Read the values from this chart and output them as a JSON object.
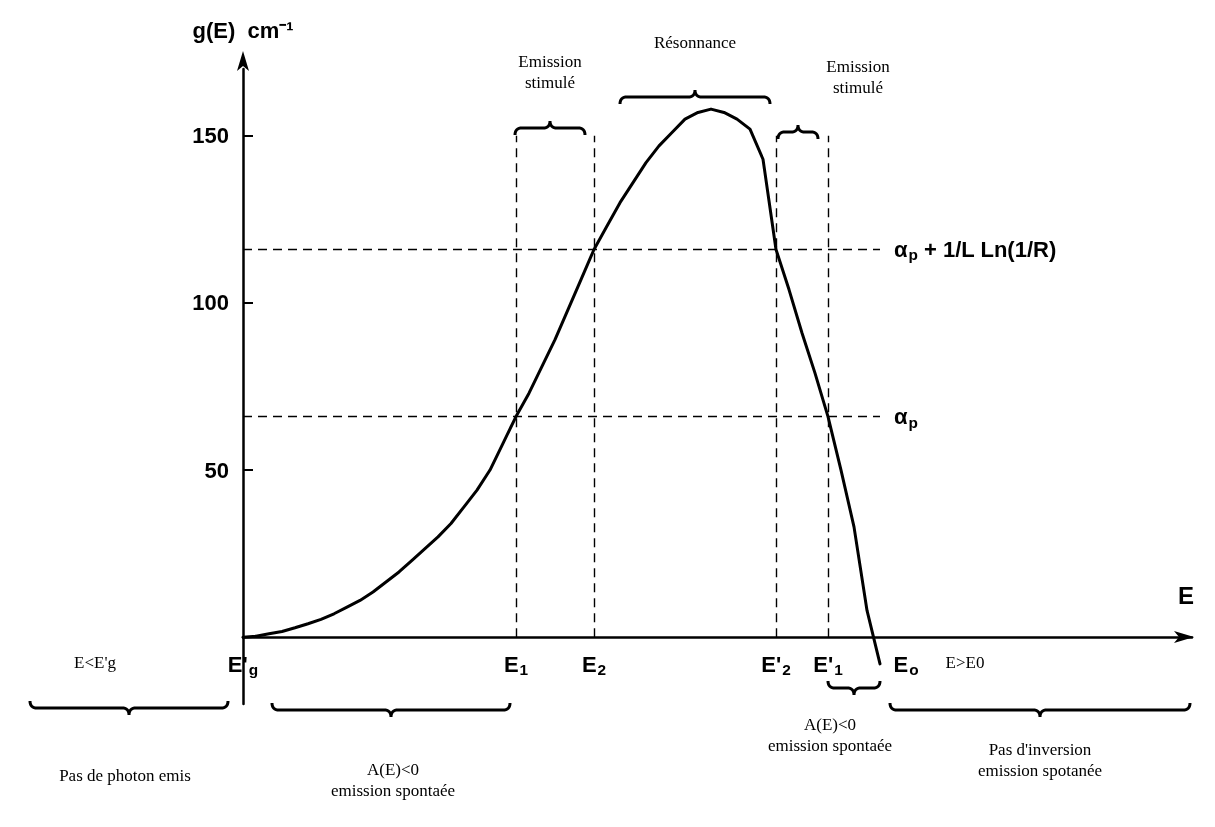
{
  "chart_data": {
    "type": "line",
    "xlabel": "E",
    "ylabel": "g(E)  cm⁻¹",
    "categories": [
      "E'$_{g}$",
      null,
      null,
      null,
      null,
      null,
      null,
      null,
      null,
      null,
      null,
      null,
      null,
      null,
      null,
      null,
      null,
      null,
      null,
      null,
      null,
      "E$_{1}$",
      null,
      null,
      null,
      null,
      null,
      "E$_{2}$",
      null,
      null,
      null,
      null,
      null,
      null,
      null,
      null,
      null,
      null,
      null,
      null,
      null,
      "E'$_{2}$",
      null,
      null,
      null,
      "E'$_{1}$",
      null,
      null,
      null,
      null,
      null,
      "E$_{o}$",
      null,
      null,
      null,
      null,
      null,
      null,
      null,
      null,
      null,
      null,
      null,
      null,
      null,
      null,
      null,
      null,
      null,
      null,
      null,
      null,
      null,
      null
    ],
    "values": [
      0,
      0.3,
      1,
      1.7,
      2.8,
      4,
      5.3,
      7,
      9,
      11,
      13.5,
      16.5,
      19.5,
      23,
      26.5,
      30,
      34,
      39,
      44,
      50,
      58,
      66,
      73,
      81,
      89,
      98,
      107,
      116,
      123,
      130,
      136,
      142,
      147,
      151,
      155,
      157,
      158,
      157,
      155,
      152,
      143,
      116,
      104,
      91,
      79,
      66,
      50,
      33,
      8,
      -8,
      null,
      null,
      null,
      null,
      null,
      null,
      null,
      null,
      null,
      null,
      null,
      null,
      null,
      null,
      null,
      null,
      null,
      null,
      null,
      null,
      null,
      null,
      null,
      null
    ],
    "color": "#000000",
    "marker": "none",
    "line_style": "solid",
    "ylim": [
      -20,
      170
    ],
    "yticks": [
      50,
      100,
      150
    ],
    "ref_lines": [
      {
        "axis": "y",
        "value": 116,
        "label": "α$_{p}$ + 1/L Ln(1/R)",
        "line_style": "dashed"
      },
      {
        "axis": "y",
        "value": 66,
        "label": "α$_{p}$",
        "line_style": "dashed"
      },
      {
        "axis": "x",
        "value": "E$_{1}$",
        "line_style": "dashed"
      },
      {
        "axis": "x",
        "value": "E$_{2}$",
        "line_style": "dashed"
      },
      {
        "axis": "x",
        "value": "E'$_{2}$",
        "line_style": "dashed"
      },
      {
        "axis": "x",
        "value": "E'$_{1}$",
        "line_style": "dashed"
      }
    ],
    "annotations": [
      "Emission\nstimulé",
      "Résonnance",
      "Emission\nstimulé",
      "E<E'g",
      "E>E0",
      "Pas de photon emis",
      "A(E)<0\nemission spontaée",
      "A(E)<0\nemission spontaée",
      "Pas d'inversion\nemission spotanée"
    ]
  }
}
